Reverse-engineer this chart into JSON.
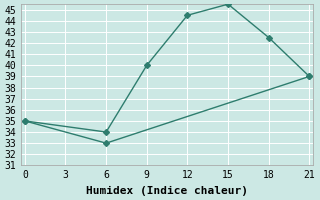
{
  "xlabel": "Humidex (Indice chaleur)",
  "background_color": "#cce8e4",
  "grid_color": "#ffffff",
  "line_color": "#2e7d6e",
  "line1_x": [
    0,
    6,
    9,
    12,
    15,
    18,
    21
  ],
  "line1_y": [
    35,
    34,
    40,
    44.5,
    45.5,
    42.5,
    39
  ],
  "line2_x": [
    0,
    6,
    21
  ],
  "line2_y": [
    35,
    33,
    39
  ],
  "xlim": [
    -0.3,
    21.3
  ],
  "ylim": [
    31,
    45.5
  ],
  "xticks": [
    0,
    3,
    6,
    9,
    12,
    15,
    18,
    21
  ],
  "yticks": [
    31,
    32,
    33,
    34,
    35,
    36,
    37,
    38,
    39,
    40,
    41,
    42,
    43,
    44,
    45
  ],
  "marker": "D",
  "marker_size": 3,
  "line_width": 1.0,
  "xlabel_fontsize": 8,
  "tick_fontsize": 7
}
